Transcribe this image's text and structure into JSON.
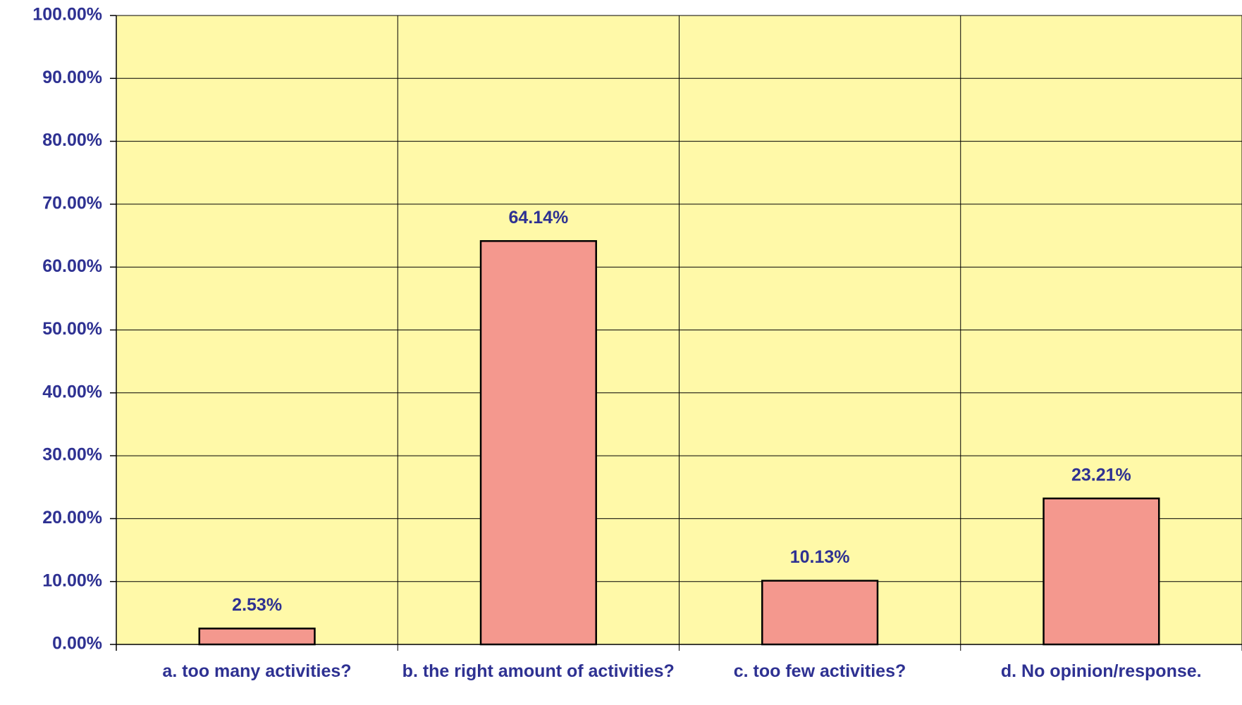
{
  "chart_data": {
    "type": "bar",
    "categories": [
      "a. too many activities?",
      "b. the right amount of activities?",
      "c. too few activities?",
      "d. No opinion/response."
    ],
    "values": [
      2.53,
      64.14,
      10.13,
      23.21
    ],
    "value_labels": [
      "2.53%",
      "64.14%",
      "10.13%",
      "23.21%"
    ],
    "color": "#f4988e",
    "ylim": [
      0,
      100
    ],
    "yticks": [
      {
        "value": 0,
        "label": "0.00%"
      },
      {
        "value": 10,
        "label": "10.00%"
      },
      {
        "value": 20,
        "label": "20.00%"
      },
      {
        "value": 30,
        "label": "30.00%"
      },
      {
        "value": 40,
        "label": "40.00%"
      },
      {
        "value": 50,
        "label": "50.00%"
      },
      {
        "value": 60,
        "label": "60.00%"
      },
      {
        "value": 70,
        "label": "70.00%"
      },
      {
        "value": 80,
        "label": "80.00%"
      },
      {
        "value": 90,
        "label": "90.00%"
      },
      {
        "value": 100,
        "label": "100.00%"
      }
    ],
    "grid": true
  }
}
